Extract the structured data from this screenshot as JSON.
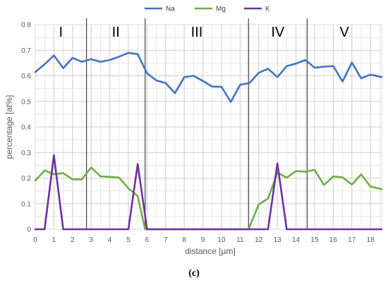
{
  "chart_data": {
    "type": "line",
    "xlabel": "distance [µm]",
    "ylabel": "percentage [at%]",
    "caption": "(c)",
    "xlim": [
      0,
      18.6
    ],
    "ylim": [
      0,
      0.8
    ],
    "x_ticks": [
      "0",
      "1",
      "2",
      "3",
      "4",
      "5",
      "6",
      "7",
      "8",
      "9",
      "10",
      "11",
      "12",
      "13",
      "14",
      "15",
      "16",
      "17",
      "18"
    ],
    "y_ticks": [
      "0",
      "0.1",
      "0.2",
      "0.3",
      "0.4",
      "0.5",
      "0.6",
      "0.7",
      "0.8"
    ],
    "grid": true,
    "legend_position": "top",
    "regions": [
      {
        "label": "I",
        "x_start": 0,
        "x_end": 2.75
      },
      {
        "label": "II",
        "x_start": 2.75,
        "x_end": 5.9
      },
      {
        "label": "III",
        "x_start": 5.9,
        "x_end": 11.45
      },
      {
        "label": "IV",
        "x_start": 11.45,
        "x_end": 14.6
      },
      {
        "label": "V",
        "x_start": 14.6,
        "x_end": 18.6
      }
    ],
    "series": [
      {
        "name": "Na",
        "color": "#4472c4",
        "x": [
          0,
          0.5,
          1,
          1.5,
          2,
          2.5,
          3,
          3.5,
          4,
          4.5,
          5,
          5.5,
          6,
          6.5,
          7,
          7.5,
          8,
          8.5,
          9,
          9.5,
          10,
          10.5,
          11,
          11.5,
          12,
          12.5,
          13,
          13.5,
          14,
          14.5,
          15,
          15.5,
          16,
          16.5,
          17,
          17.5,
          18,
          18.6
        ],
        "values": [
          0.615,
          0.645,
          0.68,
          0.63,
          0.67,
          0.655,
          0.665,
          0.655,
          0.662,
          0.675,
          0.69,
          0.685,
          0.61,
          0.582,
          0.572,
          0.532,
          0.595,
          0.6,
          0.58,
          0.558,
          0.557,
          0.498,
          0.565,
          0.572,
          0.612,
          0.628,
          0.595,
          0.638,
          0.648,
          0.662,
          0.632,
          0.636,
          0.638,
          0.578,
          0.652,
          0.59,
          0.605,
          0.595
        ]
      },
      {
        "name": "Mg",
        "color": "#70ad47",
        "x": [
          0,
          0.5,
          1,
          1.5,
          2,
          2.5,
          3,
          3.5,
          4,
          4.5,
          5,
          5.5,
          5.9,
          6.5,
          7,
          7.5,
          8,
          8.5,
          9,
          9.5,
          10,
          10.5,
          11,
          11.45,
          12,
          12.5,
          13,
          13.5,
          14,
          14.5,
          15,
          15.5,
          16,
          16.5,
          17,
          17.5,
          18,
          18.6
        ],
        "values": [
          0.19,
          0.23,
          0.215,
          0.22,
          0.195,
          0.195,
          0.242,
          0.207,
          0.205,
          0.202,
          0.16,
          0.13,
          0.0,
          0.0,
          0.0,
          0.0,
          0.0,
          0.0,
          0.0,
          0.0,
          0.0,
          0.0,
          0.0,
          0.0,
          0.097,
          0.12,
          0.222,
          0.202,
          0.228,
          0.225,
          0.232,
          0.173,
          0.207,
          0.203,
          0.175,
          0.215,
          0.167,
          0.157
        ]
      },
      {
        "name": "K",
        "color": "#7030a0",
        "x": [
          0,
          0.5,
          1,
          1.5,
          2,
          2.5,
          3,
          3.5,
          4,
          4.5,
          5,
          5.5,
          6,
          6.5,
          7,
          7.5,
          8,
          8.5,
          9,
          9.5,
          10,
          10.5,
          11,
          11.5,
          12,
          12.5,
          13,
          13.5,
          14,
          14.5,
          15,
          15.5,
          16,
          16.5,
          17,
          17.5,
          18,
          18.6
        ],
        "values": [
          0,
          0,
          0.29,
          0,
          0,
          0,
          0,
          0,
          0,
          0,
          0,
          0.255,
          0,
          0,
          0,
          0,
          0,
          0,
          0,
          0,
          0,
          0,
          0,
          0,
          0,
          0,
          0.258,
          0,
          0,
          0,
          0,
          0,
          0,
          0,
          0,
          0,
          0,
          0
        ]
      }
    ]
  }
}
